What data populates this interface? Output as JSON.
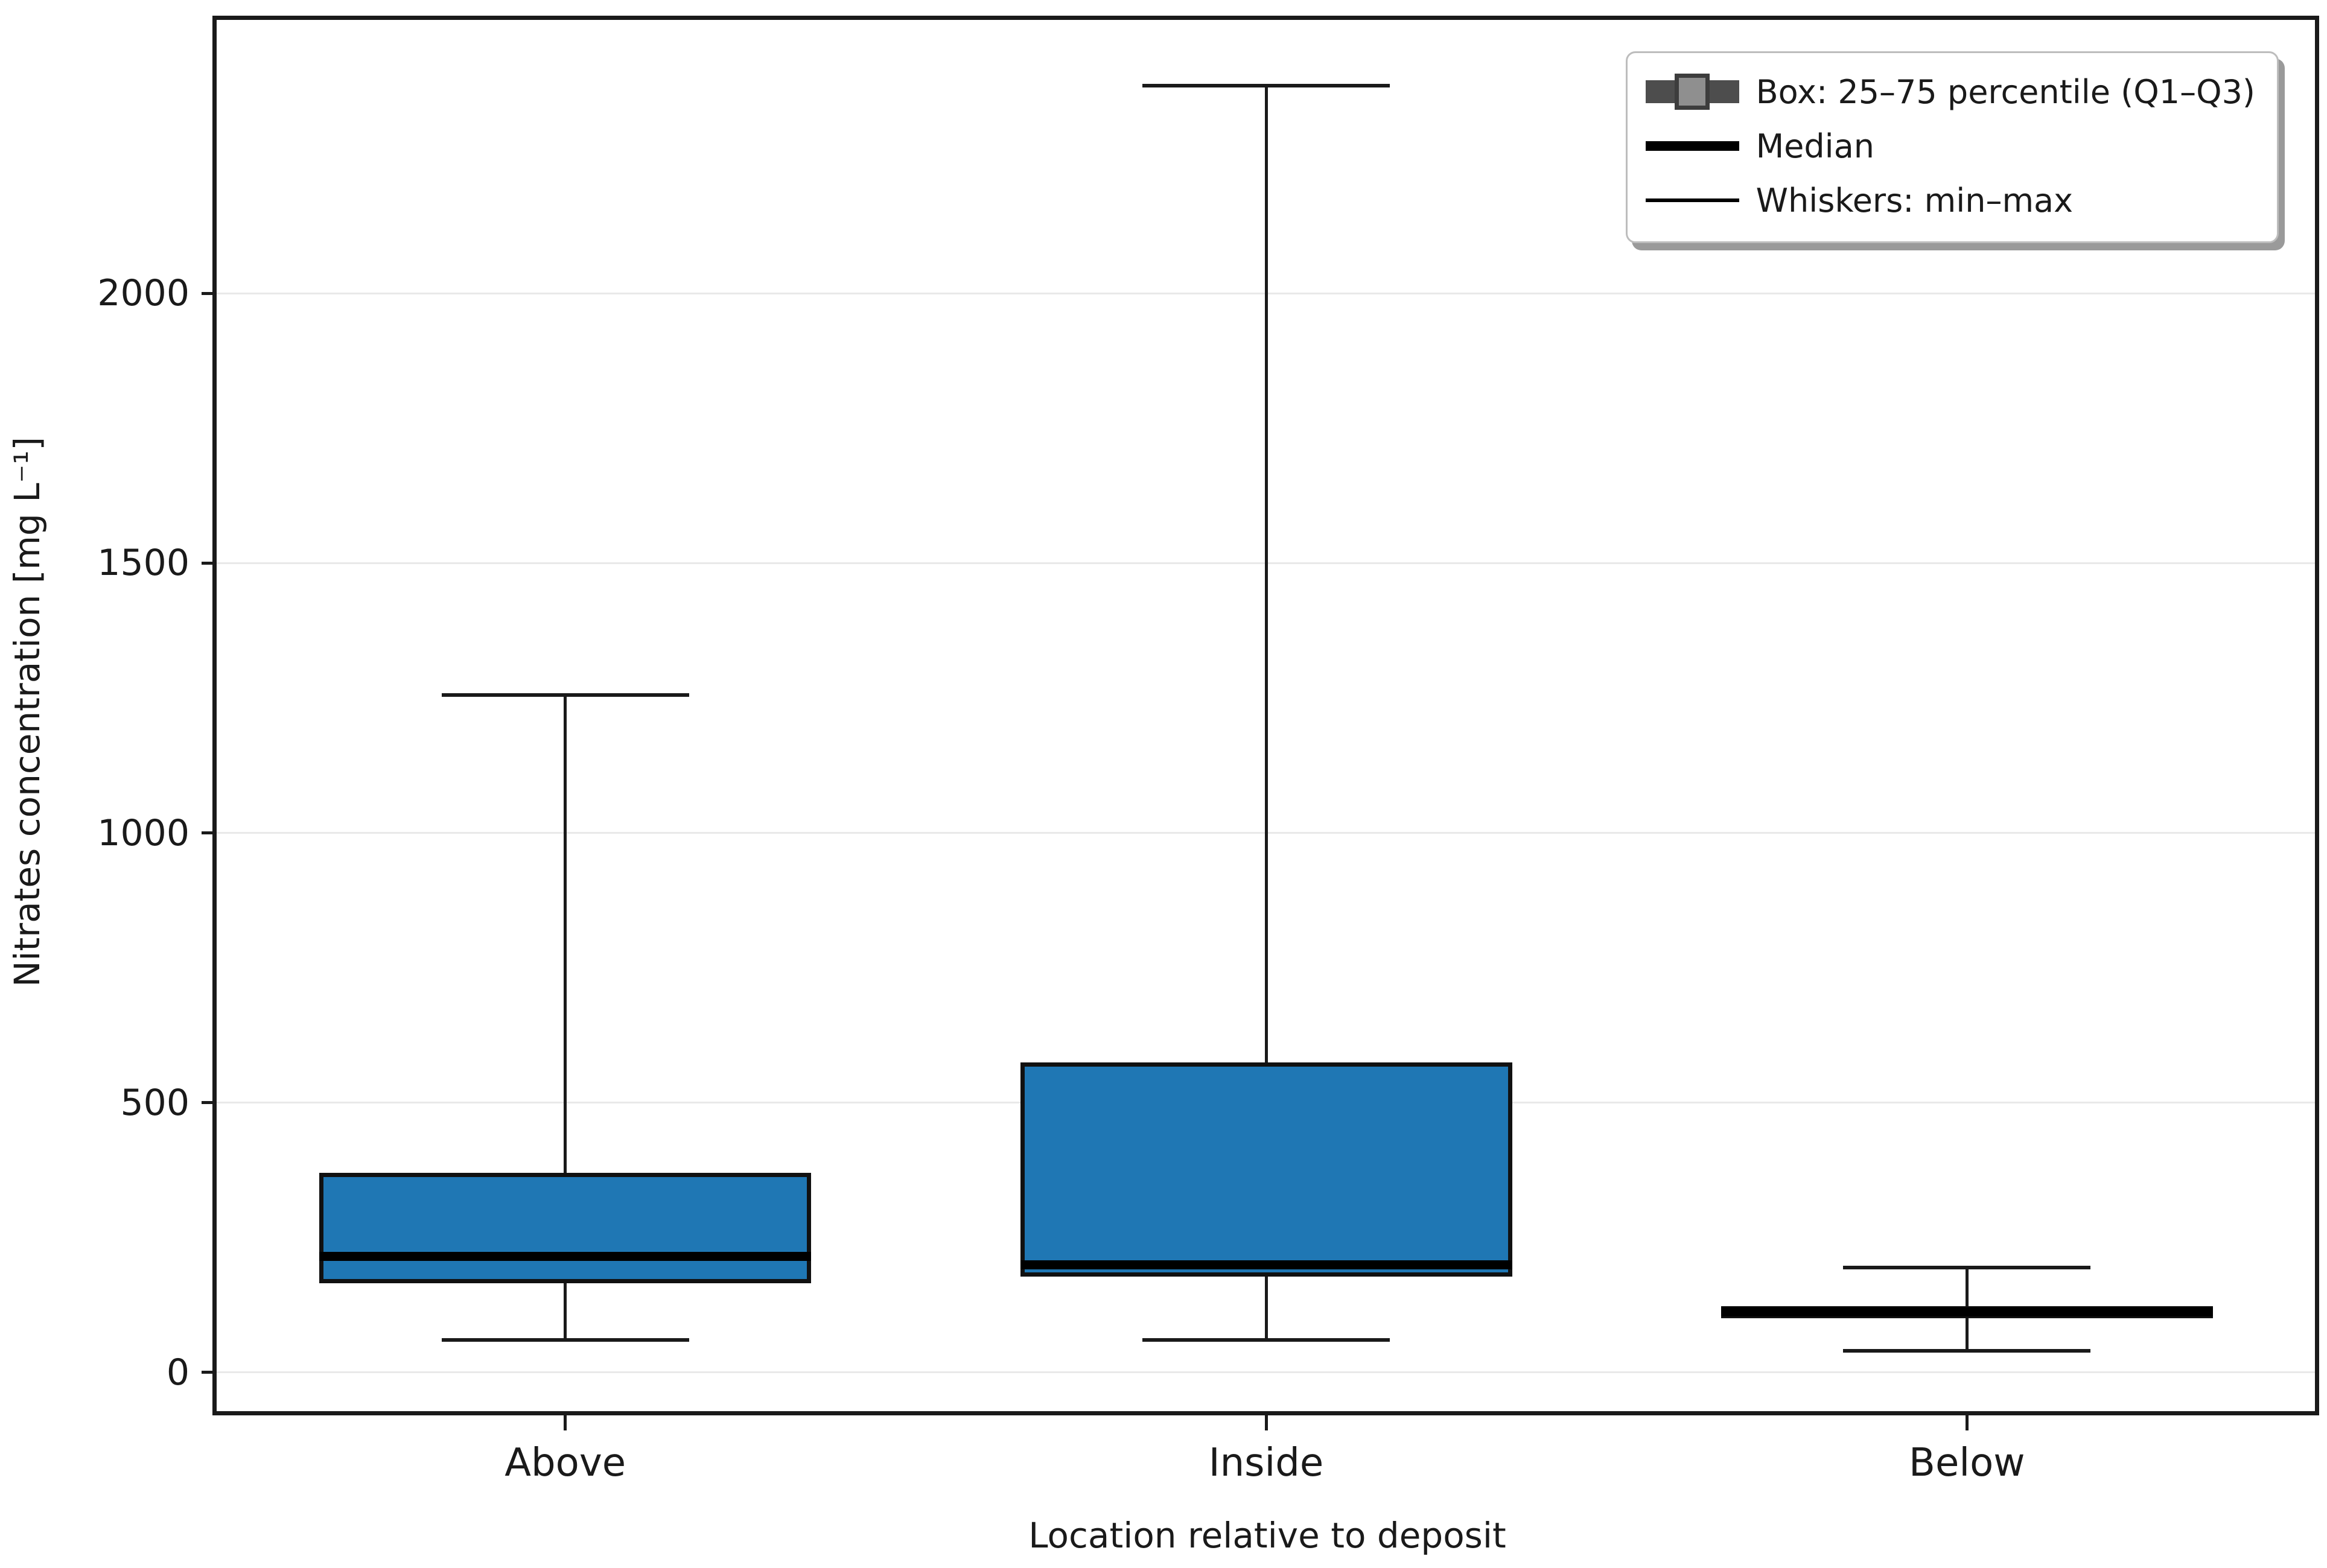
{
  "chart_data": {
    "type": "box",
    "title": "",
    "xlabel": "Location relative to deposit",
    "ylabel": "Nitrates concentration [mg L⁻¹]",
    "categories": [
      "Above",
      "Inside",
      "Below"
    ],
    "x_positions": [
      1,
      2,
      3
    ],
    "series": [
      {
        "name": "Above",
        "min": 60,
        "q1": 165,
        "median": 215,
        "q3": 370,
        "max": 1255
      },
      {
        "name": "Inside",
        "min": 60,
        "q1": 178,
        "median": 200,
        "q3": 575,
        "max": 2385
      },
      {
        "name": "Below",
        "min": 40,
        "q1": 100,
        "median": 112,
        "q3": 123,
        "max": 195
      }
    ],
    "yticks": [
      0,
      500,
      1000,
      1500,
      2000
    ],
    "ylim": [
      -75,
      2510
    ],
    "xlim": [
      0.5,
      3.5
    ],
    "grid": "horizontal-light",
    "legend": {
      "position": "upper-right",
      "items": [
        {
          "icon": "boxplot-box-icon",
          "label": "Box: 25–75 percentile (Q1–Q3)"
        },
        {
          "icon": "median-line-icon",
          "label": "Median"
        },
        {
          "icon": "whisker-line-icon",
          "label": "Whiskers: min–max"
        }
      ]
    },
    "colors": {
      "box_fill": "#1f77b4",
      "box_edge": "#111111",
      "median_line": "#000000",
      "whisker": "#1a1a1a",
      "grid": "#e9e9e9",
      "axis": "#1a1a1a",
      "text": "#1a1a1a",
      "legend_handle_dark": "#4d4d4d",
      "legend_handle_mid": "#8f8f8f",
      "legend_border": "#bdbdbd",
      "legend_shadow": "#9a9a9a"
    }
  }
}
